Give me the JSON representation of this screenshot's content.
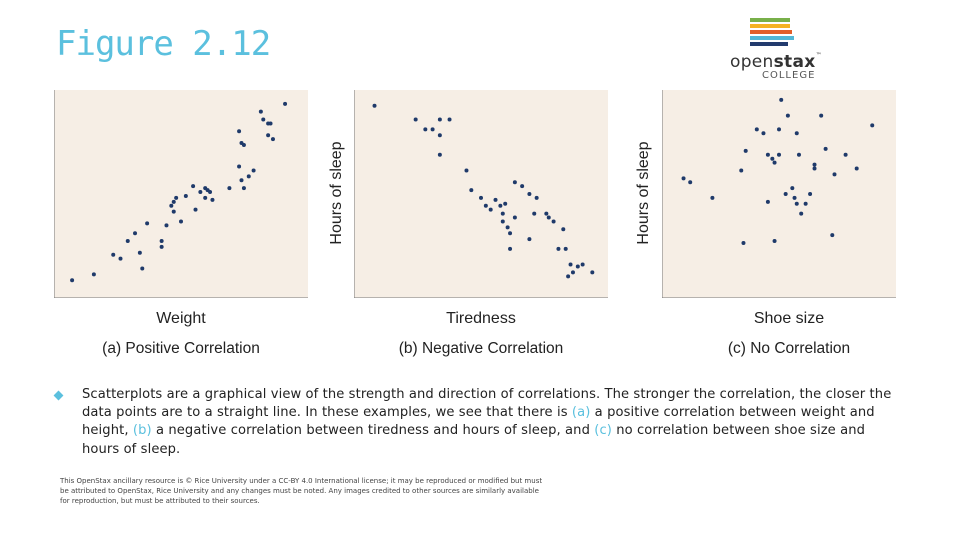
{
  "title": "Figure 2.12",
  "logo": {
    "word_light": "open",
    "word_bold": "stax",
    "tm": "™",
    "college": "COLLEGE",
    "bar_colors": [
      "#78b04a",
      "#f4b223",
      "#e35f2a",
      "#53b7d6",
      "#233b6e"
    ]
  },
  "colors": {
    "accent": "#5bc0de",
    "plot_bg": "#f6eee5",
    "point": "#1f3a6a"
  },
  "chart_data": [
    {
      "type": "scatter",
      "xlabel": "Weight",
      "ylabel": "",
      "caption": "(a) Positive Correlation",
      "points": [
        [
          5,
          6
        ],
        [
          14,
          9
        ],
        [
          22,
          19
        ],
        [
          25,
          17
        ],
        [
          28,
          26
        ],
        [
          31,
          30
        ],
        [
          33,
          20
        ],
        [
          34,
          12
        ],
        [
          36,
          35
        ],
        [
          42,
          26
        ],
        [
          42,
          23
        ],
        [
          44,
          34
        ],
        [
          46,
          44
        ],
        [
          47,
          46
        ],
        [
          47,
          41
        ],
        [
          48,
          48
        ],
        [
          50,
          36
        ],
        [
          52,
          49
        ],
        [
          55,
          54
        ],
        [
          58,
          51
        ],
        [
          56,
          42
        ],
        [
          60,
          48
        ],
        [
          60,
          53
        ],
        [
          61,
          52
        ],
        [
          62,
          51
        ],
        [
          63,
          47
        ],
        [
          70,
          53
        ],
        [
          75,
          57
        ],
        [
          76,
          53
        ],
        [
          74,
          64
        ],
        [
          74,
          82
        ],
        [
          75,
          76
        ],
        [
          76,
          75
        ],
        [
          78,
          59
        ],
        [
          80,
          62
        ],
        [
          83,
          92
        ],
        [
          86,
          86
        ],
        [
          86,
          80
        ],
        [
          88,
          78
        ],
        [
          87,
          86
        ],
        [
          93,
          96
        ],
        [
          84,
          88
        ]
      ]
    },
    {
      "type": "scatter",
      "xlabel": "Tiredness",
      "ylabel": "Hours of sleep",
      "caption": "(b) Negative Correlation",
      "points": [
        [
          6,
          95
        ],
        [
          23,
          88
        ],
        [
          27,
          83
        ],
        [
          30,
          83
        ],
        [
          33,
          80
        ],
        [
          33,
          88
        ],
        [
          37,
          88
        ],
        [
          33,
          70
        ],
        [
          44,
          62
        ],
        [
          46,
          52
        ],
        [
          50,
          48
        ],
        [
          52,
          44
        ],
        [
          54,
          42
        ],
        [
          56,
          47
        ],
        [
          58,
          44
        ],
        [
          59,
          40
        ],
        [
          59,
          36
        ],
        [
          60,
          45
        ],
        [
          61,
          33
        ],
        [
          62,
          30
        ],
        [
          62,
          22
        ],
        [
          64,
          38
        ],
        [
          64,
          56
        ],
        [
          67,
          54
        ],
        [
          70,
          50
        ],
        [
          73,
          48
        ],
        [
          72,
          40
        ],
        [
          77,
          40
        ],
        [
          78,
          38
        ],
        [
          80,
          36
        ],
        [
          82,
          22
        ],
        [
          84,
          32
        ],
        [
          85,
          22
        ],
        [
          86,
          8
        ],
        [
          87,
          14
        ],
        [
          88,
          10
        ],
        [
          90,
          13
        ],
        [
          92,
          14
        ],
        [
          96,
          10
        ],
        [
          70,
          27
        ]
      ]
    },
    {
      "type": "scatter",
      "xlabel": "Shoe size",
      "ylabel": "Hours of sleep",
      "caption": "(c) No Correlation",
      "points": [
        [
          7,
          58
        ],
        [
          10,
          56
        ],
        [
          20,
          48
        ],
        [
          33,
          62
        ],
        [
          34,
          25
        ],
        [
          35,
          72
        ],
        [
          40,
          83
        ],
        [
          43,
          81
        ],
        [
          45,
          46
        ],
        [
          45,
          70
        ],
        [
          47,
          68
        ],
        [
          48,
          66
        ],
        [
          50,
          70
        ],
        [
          50,
          83
        ],
        [
          51,
          98
        ],
        [
          53,
          50
        ],
        [
          54,
          90
        ],
        [
          56,
          53
        ],
        [
          57,
          48
        ],
        [
          58,
          45
        ],
        [
          58,
          81
        ],
        [
          59,
          70
        ],
        [
          60,
          40
        ],
        [
          62,
          45
        ],
        [
          64,
          50
        ],
        [
          66,
          63
        ],
        [
          66,
          65
        ],
        [
          69,
          90
        ],
        [
          71,
          73
        ],
        [
          75,
          60
        ],
        [
          80,
          70
        ],
        [
          85,
          63
        ],
        [
          92,
          85
        ],
        [
          48,
          26
        ],
        [
          74,
          29
        ]
      ]
    }
  ],
  "body": {
    "p1": "Scatterplots are a graphical view of the strength and direction of correlations. The stronger the correlation, the closer the data points are to a straight line. In these examples, we see that there is ",
    "a": "(a)",
    "p2": " a positive correlation between weight and height, ",
    "b": "(b)",
    "p3": " a negative correlation between tiredness and hours of sleep, and ",
    "c": "(c)",
    "p4": " no correlation between shoe size and hours of sleep."
  },
  "license": "This OpenStax ancillary resource is © Rice University under a CC-BY 4.0 International license; it may be reproduced or modified but must be attributed to OpenStax, Rice University and any changes must be noted. Any images credited to other sources are similarly available for reproduction, but must be attributed to their sources."
}
